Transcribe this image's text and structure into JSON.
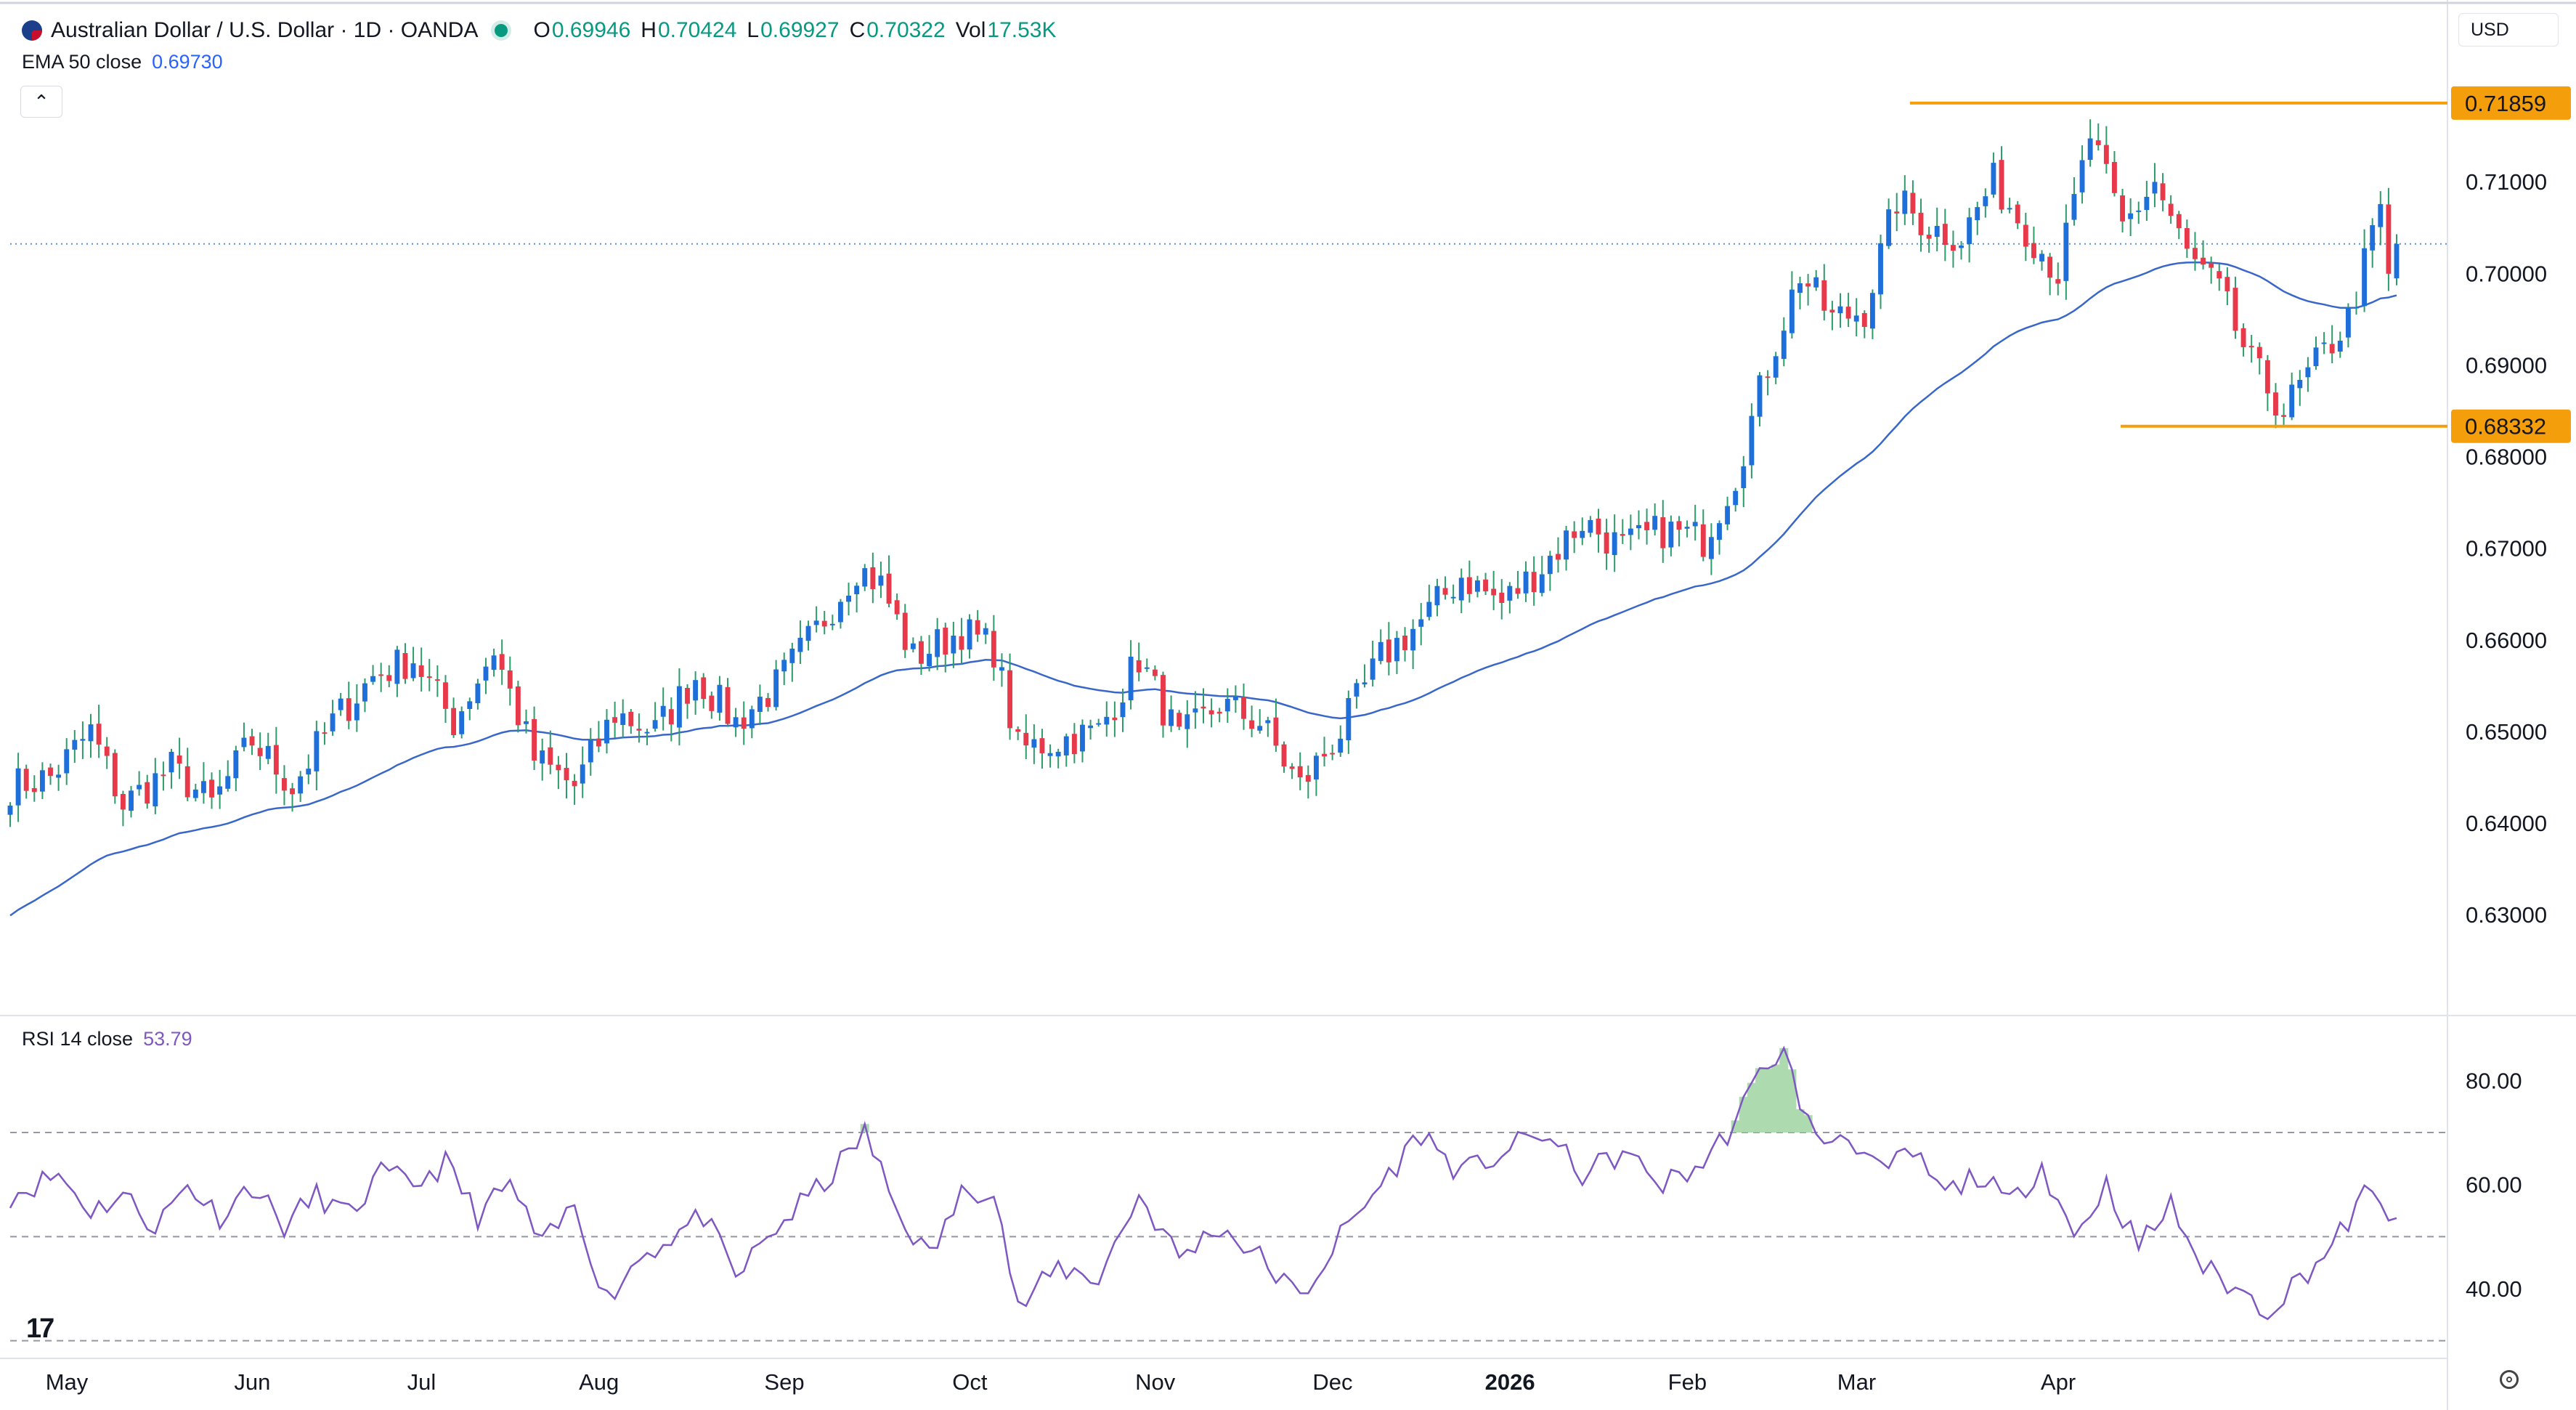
{
  "header": {
    "title": "Australian Dollar / U.S. Dollar · 1D · OANDA",
    "open_label": "O",
    "open": "0.69946",
    "high_label": "H",
    "high": "0.70424",
    "low_label": "L",
    "low": "0.69927",
    "close_label": "C",
    "close": "0.70322",
    "vol_label": "Vol",
    "vol": "17.53K"
  },
  "currency": "USD",
  "ema": {
    "label": "EMA 50 close",
    "value": "0.69730"
  },
  "rsi": {
    "label": "RSI 14 close",
    "value": "53.79"
  },
  "logo": "17",
  "colors": {
    "up": "#1e6fd9",
    "down": "#e8394a",
    "ema": "#3967c9",
    "rsi": "#7e57c2",
    "level": "#f59e0b",
    "wick": "#2e9b6a"
  },
  "chart_data": [
    {
      "type": "candlestick",
      "title": "Australian Dollar / U.S. Dollar · 1D · OANDA",
      "x_labels": [
        "May",
        "Jun",
        "Jul",
        "Aug",
        "Sep",
        "Oct",
        "Nov",
        "Dec",
        "2026",
        "Feb",
        "Mar",
        "Apr"
      ],
      "ylim": [
        0.622,
        0.7235
      ],
      "y_ticks": [
        "0.63000",
        "0.64000",
        "0.65000",
        "0.66000",
        "0.67000",
        "0.68000",
        "0.69000",
        "0.70000",
        "0.71000"
      ],
      "last_price": 0.70322,
      "levels": [
        {
          "label": "0.71859",
          "value": 0.71859,
          "from": "Feb 2026",
          "to": "right edge"
        },
        {
          "label": "0.68332",
          "value": 0.68332,
          "from": "Mar 2026",
          "to": "right edge"
        }
      ],
      "anchors": [
        [
          0,
          0.644
        ],
        [
          5,
          0.645
        ],
        [
          10,
          0.65
        ],
        [
          14,
          0.642
        ],
        [
          20,
          0.646
        ],
        [
          25,
          0.642
        ],
        [
          30,
          0.649
        ],
        [
          35,
          0.644
        ],
        [
          40,
          0.651
        ],
        [
          45,
          0.656
        ],
        [
          50,
          0.658
        ],
        [
          55,
          0.651
        ],
        [
          60,
          0.659
        ],
        [
          65,
          0.647
        ],
        [
          70,
          0.644
        ],
        [
          75,
          0.652
        ],
        [
          80,
          0.65
        ],
        [
          85,
          0.656
        ],
        [
          90,
          0.651
        ],
        [
          95,
          0.655
        ],
        [
          100,
          0.661
        ],
        [
          105,
          0.668
        ],
        [
          108,
          0.666
        ],
        [
          112,
          0.658
        ],
        [
          118,
          0.661
        ],
        [
          122,
          0.659
        ],
        [
          125,
          0.648
        ],
        [
          130,
          0.649
        ],
        [
          135,
          0.65
        ],
        [
          140,
          0.658
        ],
        [
          145,
          0.649
        ],
        [
          150,
          0.653
        ],
        [
          155,
          0.651
        ],
        [
          160,
          0.644
        ],
        [
          165,
          0.65
        ],
        [
          170,
          0.658
        ],
        [
          175,
          0.662
        ],
        [
          180,
          0.667
        ],
        [
          185,
          0.664
        ],
        [
          190,
          0.668
        ],
        [
          195,
          0.673
        ],
        [
          200,
          0.67
        ],
        [
          205,
          0.672
        ],
        [
          210,
          0.671
        ],
        [
          214,
          0.678
        ],
        [
          218,
          0.69
        ],
        [
          222,
          0.7
        ],
        [
          226,
          0.695
        ],
        [
          230,
          0.696
        ],
        [
          234,
          0.708
        ],
        [
          238,
          0.705
        ],
        [
          242,
          0.704
        ],
        [
          246,
          0.71
        ],
        [
          250,
          0.705
        ],
        [
          254,
          0.7
        ],
        [
          258,
          0.715
        ],
        [
          262,
          0.705
        ],
        [
          266,
          0.71
        ],
        [
          270,
          0.702
        ],
        [
          274,
          0.698
        ],
        [
          278,
          0.69
        ],
        [
          282,
          0.685
        ],
        [
          286,
          0.69
        ],
        [
          290,
          0.695
        ],
        [
          294,
          0.707
        ],
        [
          296,
          0.7032
        ]
      ],
      "candle_count": 297
    },
    {
      "type": "line",
      "title": "RSI 14 close",
      "ylim": [
        28,
        88
      ],
      "y_ticks": [
        "40.00",
        "60.00",
        "80.00"
      ],
      "bands": [
        70,
        50,
        30
      ],
      "anchors": [
        [
          0,
          58
        ],
        [
          6,
          62
        ],
        [
          10,
          55
        ],
        [
          14,
          58
        ],
        [
          18,
          52
        ],
        [
          22,
          60
        ],
        [
          26,
          54
        ],
        [
          30,
          60
        ],
        [
          34,
          52
        ],
        [
          38,
          58
        ],
        [
          42,
          54
        ],
        [
          46,
          62
        ],
        [
          50,
          60
        ],
        [
          54,
          64
        ],
        [
          58,
          54
        ],
        [
          62,
          60
        ],
        [
          66,
          48
        ],
        [
          70,
          56
        ],
        [
          74,
          38
        ],
        [
          78,
          46
        ],
        [
          82,
          50
        ],
        [
          86,
          54
        ],
        [
          90,
          42
        ],
        [
          94,
          50
        ],
        [
          98,
          56
        ],
        [
          102,
          62
        ],
        [
          106,
          70
        ],
        [
          110,
          55
        ],
        [
          114,
          46
        ],
        [
          118,
          58
        ],
        [
          122,
          60
        ],
        [
          125,
          36
        ],
        [
          130,
          44
        ],
        [
          135,
          42
        ],
        [
          140,
          58
        ],
        [
          145,
          46
        ],
        [
          150,
          52
        ],
        [
          155,
          46
        ],
        [
          160,
          38
        ],
        [
          165,
          50
        ],
        [
          170,
          60
        ],
        [
          175,
          70
        ],
        [
          180,
          62
        ],
        [
          185,
          66
        ],
        [
          190,
          70
        ],
        [
          195,
          62
        ],
        [
          200,
          66
        ],
        [
          205,
          60
        ],
        [
          210,
          64
        ],
        [
          214,
          72
        ],
        [
          218,
          84
        ],
        [
          220,
          85
        ],
        [
          224,
          68
        ],
        [
          228,
          70
        ],
        [
          232,
          62
        ],
        [
          236,
          66
        ],
        [
          240,
          58
        ],
        [
          244,
          62
        ],
        [
          248,
          56
        ],
        [
          252,
          64
        ],
        [
          256,
          50
        ],
        [
          260,
          60
        ],
        [
          264,
          48
        ],
        [
          268,
          56
        ],
        [
          272,
          44
        ],
        [
          276,
          40
        ],
        [
          280,
          36
        ],
        [
          284,
          42
        ],
        [
          288,
          48
        ],
        [
          292,
          58
        ],
        [
          296,
          54
        ]
      ]
    }
  ]
}
